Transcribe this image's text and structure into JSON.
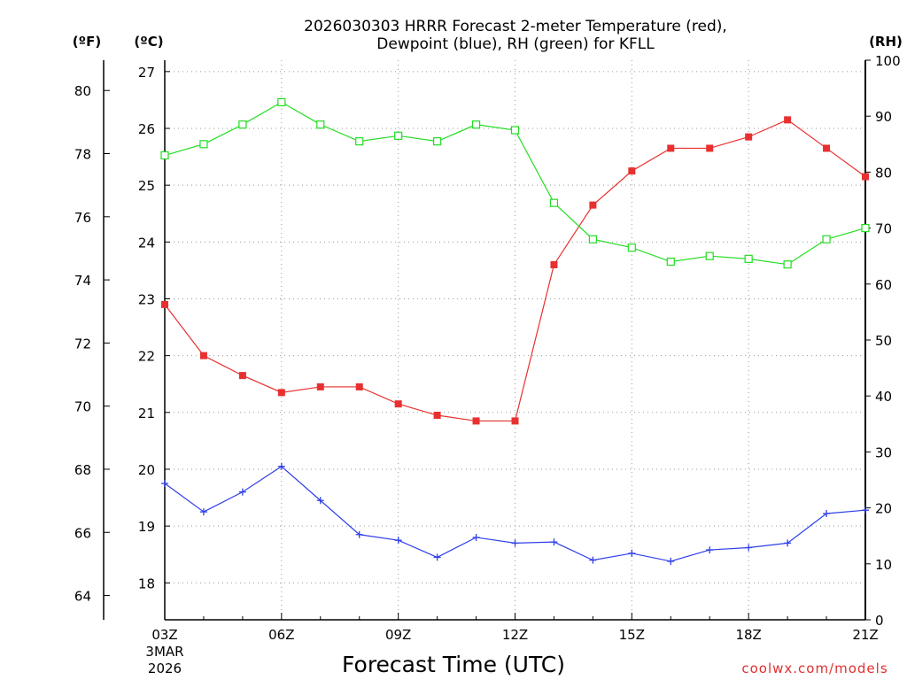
{
  "chart_data": {
    "type": "line",
    "title_line1": "2026030303 HRRR Forecast 2-meter Temperature (red),",
    "title_line2": "Dewpoint (blue), RH (green) for KFLL",
    "xlabel": "Forecast Time (UTC)",
    "credit": "coolwx.com/models",
    "date_line1": "3MAR",
    "date_line2": "2026",
    "units": {
      "fahrenheit": "(ºF)",
      "celsius": "(ºC)",
      "rh": "(RH)"
    },
    "x": [
      "03Z",
      "04Z",
      "05Z",
      "06Z",
      "07Z",
      "08Z",
      "09Z",
      "10Z",
      "11Z",
      "12Z",
      "13Z",
      "14Z",
      "15Z",
      "16Z",
      "17Z",
      "18Z",
      "19Z",
      "20Z",
      "21Z"
    ],
    "x_tick_labels": [
      "03Z",
      "06Z",
      "09Z",
      "12Z",
      "15Z",
      "18Z",
      "21Z"
    ],
    "ylim_celsius": [
      17.35,
      27.2
    ],
    "ylim_rh": [
      0,
      100
    ],
    "left_f_ticks": [
      64,
      66,
      68,
      70,
      72,
      74,
      76,
      78,
      80
    ],
    "left_c_ticks": [
      18,
      19,
      20,
      21,
      22,
      23,
      24,
      25,
      26,
      27
    ],
    "right_rh_ticks": [
      0,
      10,
      20,
      30,
      40,
      50,
      60,
      70,
      80,
      90,
      100
    ],
    "series": [
      {
        "name": "Temperature",
        "unit": "C",
        "color": "#e83030",
        "marker": "filled-square",
        "values": [
          22.9,
          22.0,
          21.65,
          21.35,
          21.45,
          21.45,
          21.15,
          20.95,
          20.85,
          20.85,
          23.6,
          24.65,
          25.25,
          25.65,
          25.65,
          25.85,
          26.15,
          25.65,
          25.15
        ]
      },
      {
        "name": "Dewpoint",
        "unit": "C",
        "color": "#2f3fe8",
        "marker": "plus",
        "values": [
          19.75,
          19.25,
          19.6,
          20.05,
          19.45,
          18.85,
          18.75,
          18.45,
          18.8,
          18.7,
          18.72,
          18.4,
          18.52,
          18.38,
          18.58,
          18.62,
          18.7,
          19.22,
          19.28
        ]
      },
      {
        "name": "RH",
        "unit": "%",
        "color": "#22dd22",
        "marker": "open-square",
        "values": [
          83,
          85,
          88.5,
          92.5,
          88.5,
          85.5,
          86.5,
          85.5,
          88.5,
          87.5,
          74.5,
          68,
          66.5,
          64,
          65,
          64.5,
          63.5,
          68,
          70
        ]
      }
    ]
  }
}
